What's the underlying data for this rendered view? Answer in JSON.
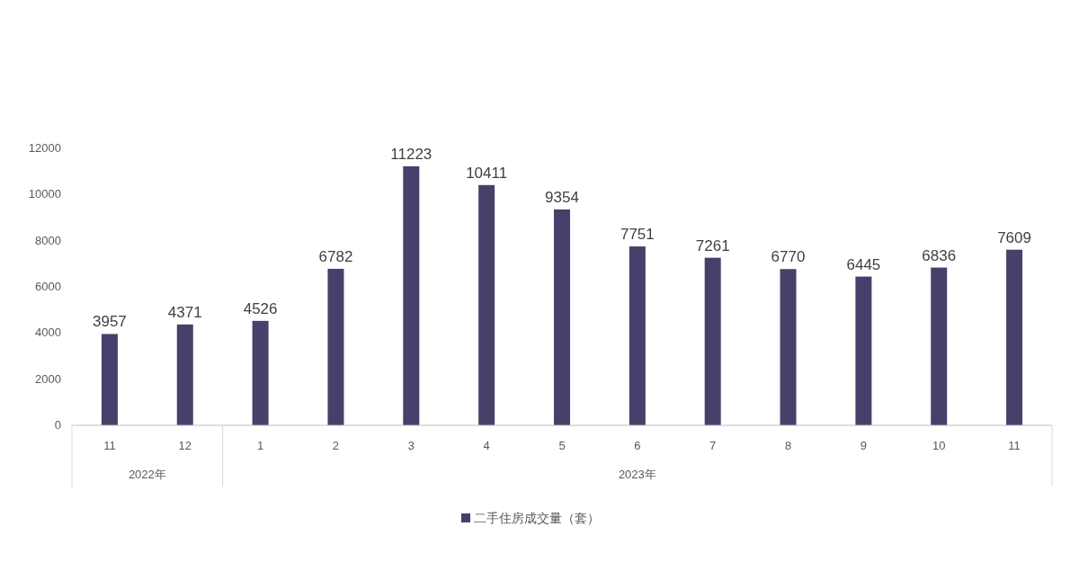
{
  "chart_data": {
    "type": "bar",
    "categories": [
      "11",
      "12",
      "1",
      "2",
      "3",
      "4",
      "5",
      "6",
      "7",
      "8",
      "9",
      "10",
      "11"
    ],
    "series": [
      {
        "name": "二手住房成交量（套）",
        "color": "#45416a",
        "values": [
          3957,
          4371,
          4526,
          6782,
          11223,
          10411,
          9354,
          7751,
          7261,
          6770,
          6445,
          6836,
          7609
        ]
      }
    ],
    "annotations": [
      "2022年",
      "2023年"
    ],
    "ylim": [
      0,
      12000
    ],
    "yticks": [
      0,
      2000,
      4000,
      6000,
      8000,
      10000,
      12000
    ],
    "data_labels": true,
    "grid": false,
    "legend": "bottom"
  }
}
